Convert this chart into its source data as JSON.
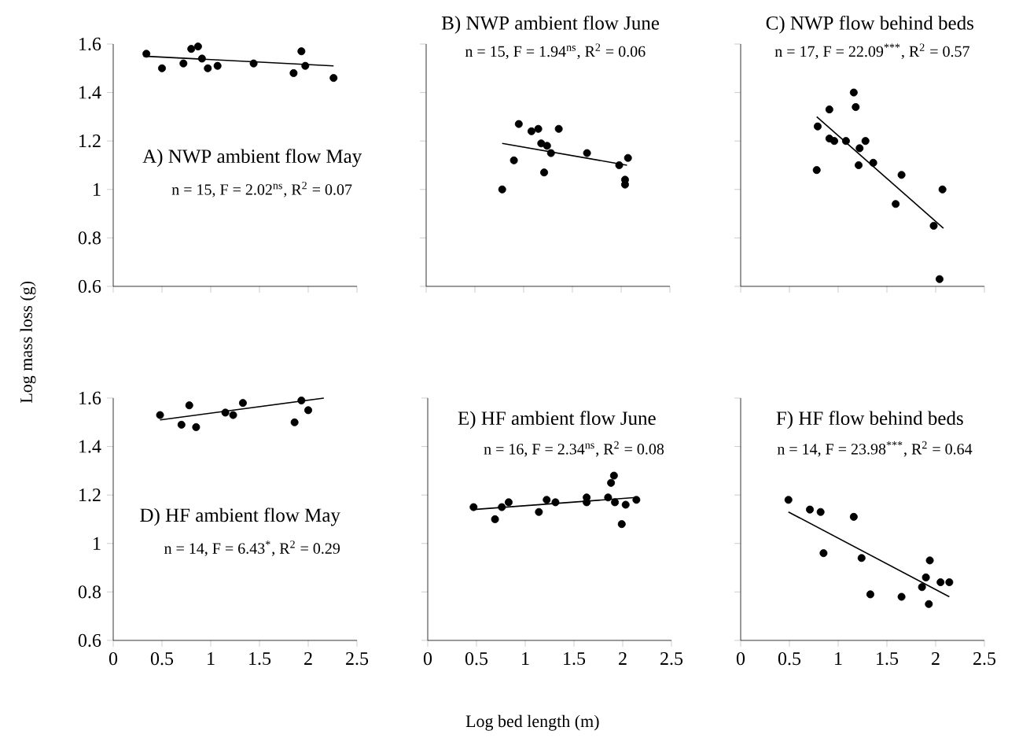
{
  "chart_data": [
    {
      "type": "scatter",
      "title": "A) NWP ambient flow May",
      "subtitle": "n = 15, F = 2.02$^{ns}$, R$^{2}$ = 0.07",
      "ylabel": "Log mass loss (g)",
      "xlim": [
        0,
        2.5
      ],
      "ylim": [
        0.6,
        1.6
      ],
      "xticks": [
        0,
        0.5,
        1,
        1.5,
        2,
        2.5
      ],
      "yticks": [
        0.6,
        0.8,
        1,
        1.2,
        1.4,
        1.6
      ],
      "tick_labels": "y",
      "marker": "circle",
      "series": [
        {
          "type": "scatter",
          "color": "#000000",
          "x": [
            0.34,
            0.5,
            0.72,
            0.8,
            0.87,
            0.91,
            0.97,
            1.07,
            1.44,
            1.85,
            1.93,
            1.97,
            2.26
          ],
          "values": [
            1.56,
            1.5,
            1.52,
            1.58,
            1.59,
            1.54,
            1.5,
            1.51,
            1.52,
            1.48,
            1.57,
            1.51,
            1.46
          ]
        },
        {
          "type": "line",
          "color": "#000000",
          "marker": "none",
          "x": [
            0.31,
            2.26
          ],
          "values": [
            1.55,
            1.51
          ]
        }
      ]
    },
    {
      "type": "scatter",
      "title": "B) NWP ambient flow June",
      "subtitle": "n = 15, F = 1.94$^{ns}$, R$^{2}$ = 0.06",
      "xlim": [
        0,
        2.5
      ],
      "ylim": [
        0.6,
        1.6
      ],
      "xticks": [
        0,
        0.5,
        1,
        1.5,
        2,
        2.5
      ],
      "yticks": [
        0.6,
        0.8,
        1,
        1.2,
        1.4,
        1.6
      ],
      "tick_labels": false,
      "marker": "circle",
      "series": [
        {
          "type": "scatter",
          "color": "#000000",
          "x": [
            0.78,
            0.9,
            0.95,
            1.08,
            1.15,
            1.18,
            1.21,
            1.24,
            1.28,
            1.36,
            1.65,
            1.98,
            2.07,
            2.04,
            2.04
          ],
          "values": [
            1.0,
            1.12,
            1.27,
            1.24,
            1.25,
            1.19,
            1.07,
            1.18,
            1.15,
            1.25,
            1.15,
            1.1,
            1.13,
            1.04,
            1.02
          ]
        },
        {
          "type": "line",
          "color": "#000000",
          "marker": "none",
          "x": [
            0.78,
            2.06
          ],
          "values": [
            1.19,
            1.1
          ]
        }
      ]
    },
    {
      "type": "scatter",
      "title": "C) NWP flow behind beds",
      "subtitle": "n = 17, F = 22.09$^{***}$, R$^{2}$ = 0.57",
      "xlim": [
        0,
        2.5
      ],
      "ylim": [
        0.6,
        1.6
      ],
      "xticks": [
        0,
        0.5,
        1,
        1.5,
        2,
        2.5
      ],
      "yticks": [
        0.6,
        0.8,
        1,
        1.2,
        1.4,
        1.6
      ],
      "tick_labels": false,
      "marker": "circle",
      "series": [
        {
          "type": "scatter",
          "color": "#000000",
          "x": [
            0.79,
            0.78,
            0.91,
            0.91,
            0.96,
            1.08,
            1.16,
            1.18,
            1.22,
            1.28,
            1.21,
            1.36,
            1.59,
            1.65,
            1.98,
            2.07,
            2.04
          ],
          "values": [
            1.26,
            1.08,
            1.33,
            1.21,
            1.2,
            1.2,
            1.4,
            1.34,
            1.17,
            1.2,
            1.1,
            1.11,
            0.94,
            1.06,
            0.85,
            1.0,
            0.63
          ]
        },
        {
          "type": "line",
          "color": "#000000",
          "marker": "none",
          "x": [
            0.78,
            2.08
          ],
          "values": [
            1.3,
            0.84
          ]
        }
      ]
    },
    {
      "type": "scatter",
      "title": "D) HF ambient flow May",
      "subtitle": "n = 14, F = 6.43$^{*}$, R$^{2}$ = 0.29",
      "xlim": [
        0,
        2.5
      ],
      "ylim": [
        0.6,
        1.6
      ],
      "xticks": [
        0,
        0.5,
        1,
        1.5,
        2,
        2.5
      ],
      "yticks": [
        0.6,
        0.8,
        1,
        1.2,
        1.4,
        1.6
      ],
      "marker": "circle",
      "series": [
        {
          "type": "scatter",
          "color": "#000000",
          "x": [
            0.48,
            0.7,
            0.78,
            0.85,
            1.15,
            1.23,
            1.33,
            1.86,
            1.93,
            2.0
          ],
          "values": [
            1.53,
            1.49,
            1.57,
            1.48,
            1.54,
            1.53,
            1.58,
            1.5,
            1.59,
            1.55
          ]
        },
        {
          "type": "line",
          "color": "#000000",
          "marker": "none",
          "x": [
            0.48,
            2.16
          ],
          "values": [
            1.51,
            1.6
          ]
        }
      ]
    },
    {
      "type": "scatter",
      "title": "E) HF ambient flow June",
      "subtitle": "n = 16, F = 2.34$^{ns}$, R$^{2}$ = 0.08",
      "xlabel": "Log bed length (m)",
      "xlim": [
        0,
        2.5
      ],
      "ylim": [
        0.6,
        1.6
      ],
      "xticks": [
        0,
        0.5,
        1,
        1.5,
        2,
        2.5
      ],
      "yticks": [
        0.6,
        0.8,
        1,
        1.2,
        1.4,
        1.6
      ],
      "tick_labels": "x",
      "marker": "circle",
      "series": [
        {
          "type": "scatter",
          "color": "#000000",
          "x": [
            0.47,
            0.69,
            0.76,
            0.83,
            1.14,
            1.22,
            1.31,
            1.63,
            1.63,
            1.85,
            1.88,
            1.91,
            1.92,
            1.99,
            2.03,
            2.14
          ],
          "values": [
            1.15,
            1.1,
            1.15,
            1.17,
            1.13,
            1.18,
            1.17,
            1.19,
            1.17,
            1.19,
            1.25,
            1.28,
            1.17,
            1.08,
            1.16,
            1.18
          ]
        },
        {
          "type": "line",
          "color": "#000000",
          "marker": "none",
          "x": [
            0.47,
            2.14
          ],
          "values": [
            1.14,
            1.19
          ]
        }
      ]
    },
    {
      "type": "scatter",
      "title": "F) HF flow behind beds",
      "subtitle": "n = 14, F = 23.98$^{***}$, R$^{2}$ = 0.64",
      "xlim": [
        0,
        2.5
      ],
      "ylim": [
        0.6,
        1.6
      ],
      "xticks": [
        0,
        0.5,
        1,
        1.5,
        2,
        2.5
      ],
      "yticks": [
        0.6,
        0.8,
        1,
        1.2,
        1.4,
        1.6
      ],
      "tick_labels": "x",
      "marker": "circle",
      "series": [
        {
          "type": "scatter",
          "color": "#000000",
          "x": [
            0.49,
            0.71,
            0.82,
            0.85,
            1.16,
            1.24,
            1.33,
            1.65,
            1.86,
            1.9,
            1.94,
            1.93,
            2.05,
            2.14
          ],
          "values": [
            1.18,
            1.14,
            1.13,
            0.96,
            1.11,
            0.94,
            0.79,
            0.78,
            0.82,
            0.86,
            0.93,
            0.75,
            0.84,
            0.84
          ]
        },
        {
          "type": "line",
          "color": "#000000",
          "marker": "none",
          "x": [
            0.49,
            2.14
          ],
          "values": [
            1.13,
            0.78
          ]
        }
      ]
    }
  ]
}
